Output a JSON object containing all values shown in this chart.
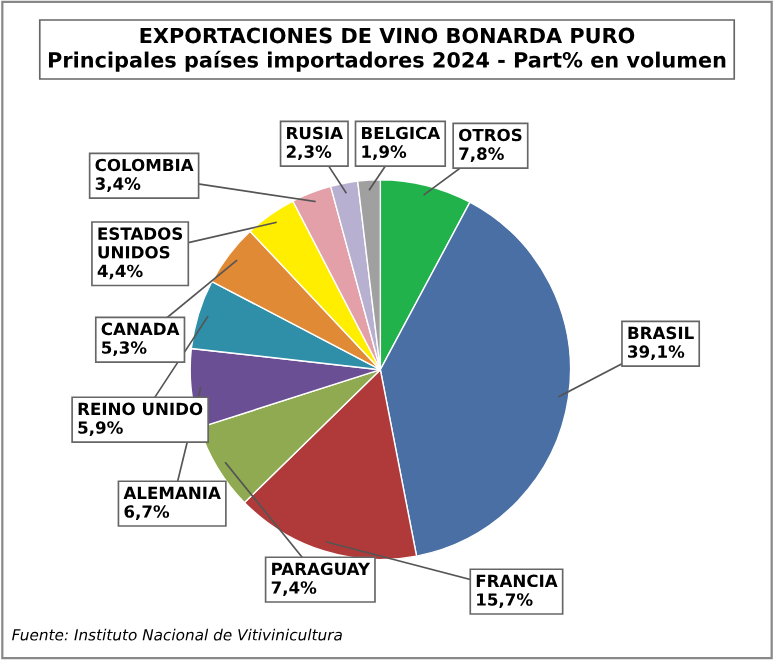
{
  "chart_data": {
    "type": "pie",
    "title": "EXPORTACIONES DE VINO BONARDA PURO",
    "subtitle": "Principales países importadores 2024 - Part% en volumen",
    "categories": [
      "OTROS",
      "BRASIL",
      "FRANCIA",
      "PARAGUAY",
      "ALEMANIA",
      "REINO UNIDO",
      "CANADA",
      "ESTADOS\nUNIDOS",
      "COLOMBIA",
      "RUSIA",
      "BELGICA"
    ],
    "values": [
      7.8,
      39.1,
      15.7,
      7.4,
      6.7,
      5.9,
      5.3,
      4.4,
      3.4,
      2.3,
      1.9
    ],
    "value_labels": [
      "7,8%",
      "39,1%",
      "15,7%",
      "7,4%",
      "6,7%",
      "5,9%",
      "5,3%",
      "4,4%",
      "3,4%",
      "2,3%",
      "1,9%"
    ],
    "colors": [
      "#22b24c",
      "#4a6fa5",
      "#b03a3a",
      "#8faa50",
      "#6b4f94",
      "#2f8fa8",
      "#e08a35",
      "#ffee00",
      "#e3a0a8",
      "#b8b0d0",
      "#a0a0a0"
    ],
    "legend": false,
    "annotations": [
      "Fuente: Instituto Nacional de Vitivinicultura"
    ]
  }
}
